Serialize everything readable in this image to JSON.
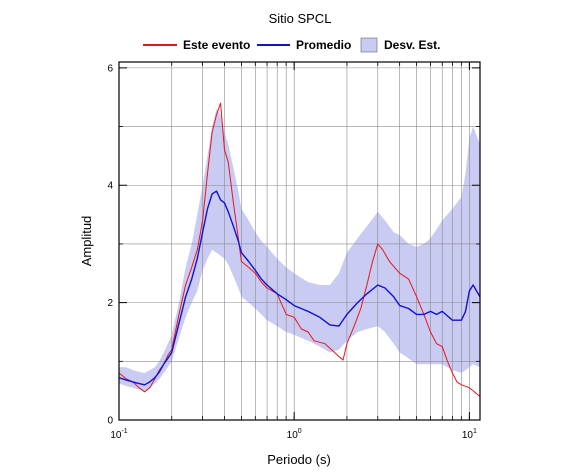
{
  "chart_data": {
    "type": "line",
    "title": "Sitio SPCL",
    "xlabel": "Periodo (s)",
    "ylabel": "Amplitud",
    "xscale": "log",
    "xlim": [
      0.1,
      11.5
    ],
    "ylim": [
      0,
      6.1
    ],
    "grid": true,
    "legend_position": "top",
    "x_ticks": [
      {
        "value": 0.1,
        "base": "10",
        "exp": "-1"
      },
      {
        "value": 1,
        "base": "10",
        "exp": "0"
      },
      {
        "value": 10,
        "base": "10",
        "exp": "1"
      }
    ],
    "y_ticks": [
      0,
      2,
      4,
      6
    ],
    "y_minor_ticks": [
      1,
      3,
      5
    ],
    "legend": [
      {
        "label": "Este evento",
        "kind": "line",
        "color": "#e8141c"
      },
      {
        "label": "Promedio",
        "kind": "line",
        "color": "#1212d0"
      },
      {
        "label": "Desv. Est.",
        "kind": "band",
        "color": "#c9cbf2"
      }
    ],
    "series": [
      {
        "name": "Este evento",
        "color": "#e8141c",
        "points": [
          [
            0.1,
            0.8
          ],
          [
            0.11,
            0.7
          ],
          [
            0.12,
            0.65
          ],
          [
            0.13,
            0.55
          ],
          [
            0.14,
            0.48
          ],
          [
            0.15,
            0.55
          ],
          [
            0.16,
            0.7
          ],
          [
            0.17,
            0.85
          ],
          [
            0.18,
            0.95
          ],
          [
            0.19,
            1.1
          ],
          [
            0.2,
            1.2
          ],
          [
            0.22,
            1.8
          ],
          [
            0.24,
            2.3
          ],
          [
            0.26,
            2.6
          ],
          [
            0.28,
            2.9
          ],
          [
            0.3,
            3.4
          ],
          [
            0.32,
            4.2
          ],
          [
            0.34,
            4.9
          ],
          [
            0.36,
            5.2
          ],
          [
            0.38,
            5.4
          ],
          [
            0.4,
            4.6
          ],
          [
            0.42,
            4.4
          ],
          [
            0.45,
            3.7
          ],
          [
            0.48,
            3.1
          ],
          [
            0.5,
            2.7
          ],
          [
            0.55,
            2.6
          ],
          [
            0.6,
            2.5
          ],
          [
            0.65,
            2.35
          ],
          [
            0.7,
            2.25
          ],
          [
            0.8,
            2.15
          ],
          [
            0.9,
            1.8
          ],
          [
            1.0,
            1.75
          ],
          [
            1.1,
            1.55
          ],
          [
            1.2,
            1.5
          ],
          [
            1.3,
            1.35
          ],
          [
            1.5,
            1.3
          ],
          [
            1.7,
            1.15
          ],
          [
            1.9,
            1.02
          ],
          [
            2.0,
            1.3
          ],
          [
            2.2,
            1.6
          ],
          [
            2.4,
            1.9
          ],
          [
            2.6,
            2.3
          ],
          [
            2.8,
            2.7
          ],
          [
            3.0,
            3.0
          ],
          [
            3.2,
            2.9
          ],
          [
            3.5,
            2.7
          ],
          [
            4.0,
            2.5
          ],
          [
            4.5,
            2.4
          ],
          [
            5.0,
            2.1
          ],
          [
            5.5,
            1.8
          ],
          [
            6.0,
            1.5
          ],
          [
            6.5,
            1.3
          ],
          [
            7.0,
            1.25
          ],
          [
            7.5,
            1.0
          ],
          [
            8.0,
            0.8
          ],
          [
            8.5,
            0.65
          ],
          [
            9.0,
            0.6
          ],
          [
            10.0,
            0.55
          ],
          [
            11.5,
            0.4
          ]
        ]
      },
      {
        "name": "Promedio",
        "color": "#1212d0",
        "points": [
          [
            0.1,
            0.72
          ],
          [
            0.11,
            0.68
          ],
          [
            0.12,
            0.65
          ],
          [
            0.13,
            0.62
          ],
          [
            0.14,
            0.6
          ],
          [
            0.15,
            0.65
          ],
          [
            0.16,
            0.72
          ],
          [
            0.17,
            0.82
          ],
          [
            0.18,
            0.95
          ],
          [
            0.19,
            1.05
          ],
          [
            0.2,
            1.15
          ],
          [
            0.22,
            1.65
          ],
          [
            0.24,
            2.1
          ],
          [
            0.26,
            2.4
          ],
          [
            0.28,
            2.75
          ],
          [
            0.3,
            3.2
          ],
          [
            0.32,
            3.6
          ],
          [
            0.34,
            3.85
          ],
          [
            0.36,
            3.9
          ],
          [
            0.38,
            3.75
          ],
          [
            0.4,
            3.7
          ],
          [
            0.42,
            3.55
          ],
          [
            0.45,
            3.3
          ],
          [
            0.48,
            3.05
          ],
          [
            0.5,
            2.85
          ],
          [
            0.55,
            2.7
          ],
          [
            0.6,
            2.55
          ],
          [
            0.65,
            2.4
          ],
          [
            0.7,
            2.3
          ],
          [
            0.8,
            2.15
          ],
          [
            0.9,
            2.05
          ],
          [
            1.0,
            1.95
          ],
          [
            1.2,
            1.85
          ],
          [
            1.4,
            1.75
          ],
          [
            1.6,
            1.62
          ],
          [
            1.8,
            1.6
          ],
          [
            2.0,
            1.8
          ],
          [
            2.3,
            2.0
          ],
          [
            2.6,
            2.15
          ],
          [
            3.0,
            2.3
          ],
          [
            3.3,
            2.25
          ],
          [
            3.7,
            2.1
          ],
          [
            4.0,
            1.95
          ],
          [
            4.5,
            1.9
          ],
          [
            5.0,
            1.8
          ],
          [
            5.5,
            1.8
          ],
          [
            6.0,
            1.85
          ],
          [
            6.5,
            1.8
          ],
          [
            7.0,
            1.85
          ],
          [
            8.0,
            1.7
          ],
          [
            9.0,
            1.7
          ],
          [
            9.5,
            1.85
          ],
          [
            10.0,
            2.2
          ],
          [
            10.5,
            2.3
          ],
          [
            11.5,
            2.1
          ]
        ]
      }
    ],
    "band": {
      "name": "Desv. Est.",
      "color": "#c9cbf2",
      "points": [
        [
          0.1,
          0.62,
          0.9
        ],
        [
          0.11,
          0.58,
          0.9
        ],
        [
          0.12,
          0.55,
          0.85
        ],
        [
          0.13,
          0.52,
          0.82
        ],
        [
          0.14,
          0.5,
          0.8
        ],
        [
          0.15,
          0.55,
          0.85
        ],
        [
          0.16,
          0.62,
          0.9
        ],
        [
          0.17,
          0.7,
          1.0
        ],
        [
          0.18,
          0.8,
          1.15
        ],
        [
          0.19,
          0.9,
          1.3
        ],
        [
          0.2,
          1.0,
          1.45
        ],
        [
          0.22,
          1.4,
          2.0
        ],
        [
          0.24,
          1.75,
          2.6
        ],
        [
          0.26,
          2.0,
          3.0
        ],
        [
          0.28,
          2.2,
          3.5
        ],
        [
          0.3,
          2.55,
          4.0
        ],
        [
          0.32,
          2.75,
          4.5
        ],
        [
          0.34,
          2.9,
          5.0
        ],
        [
          0.36,
          2.85,
          5.3
        ],
        [
          0.38,
          2.8,
          5.2
        ],
        [
          0.4,
          2.75,
          4.9
        ],
        [
          0.42,
          2.65,
          4.7
        ],
        [
          0.45,
          2.45,
          4.3
        ],
        [
          0.48,
          2.25,
          3.9
        ],
        [
          0.5,
          2.1,
          3.6
        ],
        [
          0.55,
          2.0,
          3.4
        ],
        [
          0.6,
          1.9,
          3.2
        ],
        [
          0.65,
          1.8,
          3.05
        ],
        [
          0.7,
          1.7,
          2.95
        ],
        [
          0.8,
          1.6,
          2.75
        ],
        [
          0.9,
          1.5,
          2.6
        ],
        [
          1.0,
          1.45,
          2.5
        ],
        [
          1.2,
          1.35,
          2.35
        ],
        [
          1.4,
          1.25,
          2.3
        ],
        [
          1.6,
          1.15,
          2.3
        ],
        [
          1.8,
          1.2,
          2.5
        ],
        [
          2.0,
          1.35,
          2.85
        ],
        [
          2.3,
          1.5,
          3.1
        ],
        [
          2.6,
          1.55,
          3.3
        ],
        [
          3.0,
          1.6,
          3.55
        ],
        [
          3.3,
          1.5,
          3.4
        ],
        [
          3.7,
          1.3,
          3.2
        ],
        [
          4.0,
          1.15,
          3.15
        ],
        [
          4.5,
          1.05,
          3.0
        ],
        [
          5.0,
          0.95,
          2.95
        ],
        [
          5.5,
          0.95,
          3.0
        ],
        [
          6.0,
          0.95,
          3.1
        ],
        [
          6.5,
          0.95,
          3.25
        ],
        [
          7.0,
          0.95,
          3.4
        ],
        [
          8.0,
          0.85,
          3.6
        ],
        [
          9.0,
          0.8,
          3.8
        ],
        [
          9.5,
          0.85,
          4.2
        ],
        [
          10.0,
          0.9,
          4.8
        ],
        [
          10.5,
          0.95,
          5.0
        ],
        [
          11.5,
          0.9,
          4.7
        ]
      ]
    }
  }
}
